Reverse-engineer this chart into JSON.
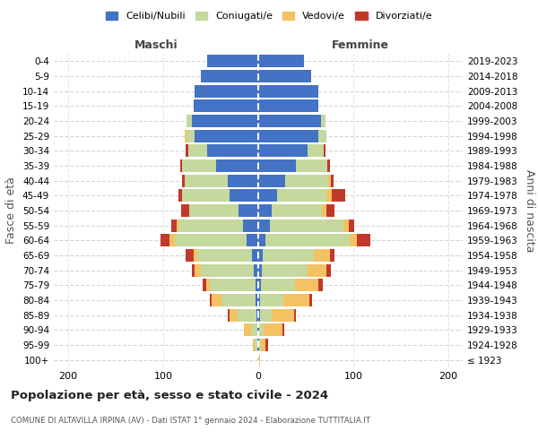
{
  "age_groups": [
    "100+",
    "95-99",
    "90-94",
    "85-89",
    "80-84",
    "75-79",
    "70-74",
    "65-69",
    "60-64",
    "55-59",
    "50-54",
    "45-49",
    "40-44",
    "35-39",
    "30-34",
    "25-29",
    "20-24",
    "15-19",
    "10-14",
    "5-9",
    "0-4"
  ],
  "birth_years": [
    "≤ 1923",
    "1924-1928",
    "1929-1933",
    "1934-1938",
    "1939-1943",
    "1944-1948",
    "1949-1953",
    "1954-1958",
    "1959-1963",
    "1964-1968",
    "1969-1973",
    "1974-1978",
    "1979-1983",
    "1984-1988",
    "1989-1993",
    "1994-1998",
    "1999-2003",
    "2004-2008",
    "2009-2013",
    "2014-2018",
    "2019-2023"
  ],
  "males_celibi": [
    0,
    1,
    1,
    2,
    3,
    3,
    5,
    7,
    12,
    16,
    21,
    30,
    32,
    44,
    54,
    67,
    70,
    68,
    67,
    60,
    54
  ],
  "males_coniugati": [
    1,
    3,
    7,
    20,
    36,
    48,
    55,
    57,
    76,
    68,
    52,
    50,
    45,
    36,
    20,
    8,
    5,
    0,
    0,
    0,
    0
  ],
  "males_vedovi": [
    0,
    2,
    7,
    8,
    10,
    4,
    7,
    4,
    5,
    2,
    0,
    0,
    0,
    0,
    0,
    2,
    0,
    0,
    0,
    0,
    0
  ],
  "males_divorziati": [
    0,
    0,
    0,
    2,
    2,
    3,
    3,
    8,
    10,
    5,
    8,
    4,
    3,
    2,
    2,
    0,
    0,
    0,
    0,
    0,
    0
  ],
  "females_nubili": [
    0,
    1,
    1,
    2,
    2,
    3,
    4,
    5,
    8,
    12,
    14,
    20,
    28,
    40,
    52,
    63,
    66,
    63,
    63,
    56,
    48
  ],
  "females_coniugate": [
    1,
    2,
    5,
    12,
    24,
    36,
    48,
    53,
    88,
    78,
    53,
    52,
    46,
    33,
    17,
    9,
    5,
    0,
    0,
    0,
    0
  ],
  "females_vedove": [
    1,
    5,
    19,
    24,
    28,
    24,
    20,
    17,
    8,
    5,
    5,
    5,
    2,
    0,
    0,
    0,
    0,
    0,
    0,
    0,
    0
  ],
  "females_divorziate": [
    0,
    2,
    2,
    2,
    3,
    5,
    4,
    5,
    14,
    6,
    8,
    14,
    3,
    2,
    2,
    0,
    0,
    0,
    0,
    0,
    0
  ],
  "colors_celibi": "#4472c4",
  "colors_coniugati": "#c5d89d",
  "colors_vedovi": "#f4c262",
  "colors_divorziati": "#c0392b",
  "xlim": [
    -215,
    215
  ],
  "xticks": [
    -200,
    -100,
    0,
    100,
    200
  ],
  "xticklabels": [
    "200",
    "100",
    "0",
    "100",
    "200"
  ],
  "title": "Popolazione per età, sesso e stato civile - 2024",
  "subtitle": "COMUNE DI ALTAVILLA IRPINA (AV) - Dati ISTAT 1° gennaio 2024 - Elaborazione TUTTITALIA.IT",
  "ylabel_left": "Fasce di età",
  "ylabel_right": "Anni di nascita",
  "label_maschi": "Maschi",
  "label_femmine": "Femmine",
  "legend_labels": [
    "Celibi/Nubili",
    "Coniugati/e",
    "Vedovi/e",
    "Divorziati/e"
  ]
}
